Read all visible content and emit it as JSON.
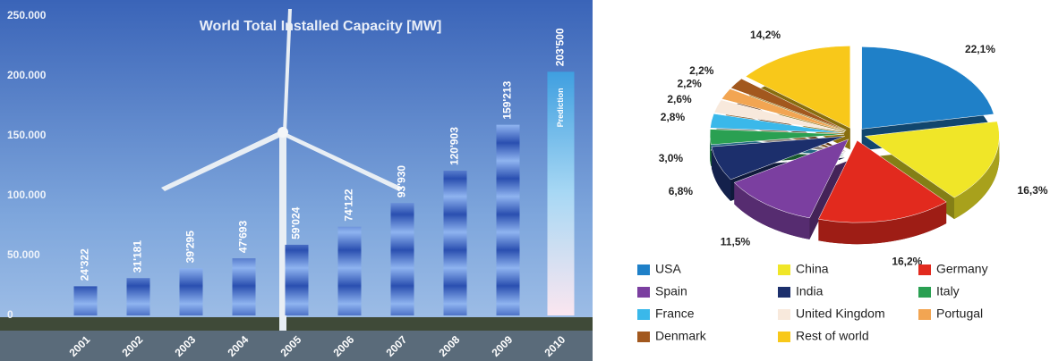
{
  "chart_data": [
    {
      "type": "bar",
      "title": "World Total Installed Capacity [MW]",
      "categories": [
        "2001",
        "2002",
        "2003",
        "2004",
        "2005",
        "2006",
        "2007",
        "2008",
        "2009",
        "2010"
      ],
      "values": [
        24322,
        31181,
        39295,
        47693,
        59024,
        74122,
        93930,
        120903,
        159213,
        203500
      ],
      "value_labels": [
        "24'322",
        "31'181",
        "39'295",
        "47'693",
        "59'024",
        "74'122",
        "93'930",
        "120'903",
        "159'213",
        "203'500"
      ],
      "color": "#2a4fb0",
      "annotation": "Prediction",
      "ylim": [
        0,
        250000
      ],
      "yticks": [
        0,
        {
          "value": 50000,
          "label": "50.000"
        },
        {
          "value": 100000,
          "label": "100.000"
        },
        {
          "value": 150000,
          "label": "150.000"
        },
        {
          "value": 200000,
          "label": "200.000"
        },
        {
          "value": 250000,
          "label": "250.000"
        }
      ],
      "grid": false
    },
    {
      "type": "pie",
      "categories": [
        "USA",
        "China",
        "Germany",
        "Spain",
        "India",
        "Italy",
        "France",
        "United Kingdom",
        "Portugal",
        "Denmark",
        "Rest of world"
      ],
      "values": [
        22.1,
        16.3,
        16.2,
        11.5,
        6.8,
        3.0,
        2.8,
        2.6,
        2.2,
        2.2,
        14.2
      ],
      "value_labels": [
        "22,1%",
        "16,3%",
        "16,2%",
        "11,5%",
        "6,8%",
        "3,0%",
        "2,8%",
        "2,6%",
        "2,2%",
        "2,2%",
        "14,2%"
      ],
      "colors": [
        "#1f80c8",
        "#f0e628",
        "#e22a1e",
        "#7b3fa0",
        "#1c2f6c",
        "#2aa052",
        "#3ab8ea",
        "#f8e9dc",
        "#f2a552",
        "#a2581e",
        "#f8c81a"
      ]
    }
  ]
}
